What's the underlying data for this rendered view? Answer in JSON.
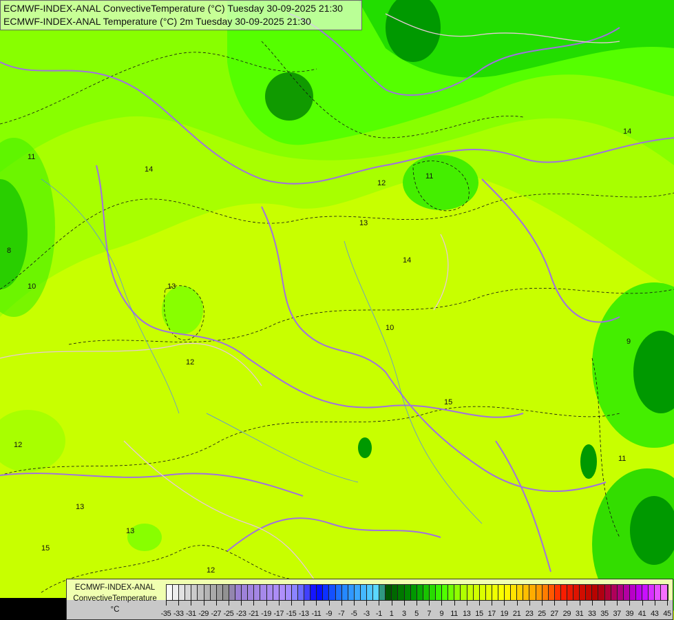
{
  "header": {
    "line1": "ECMWF-INDEX-ANAL ConvectiveTemperature (°C) Tuesday 30-09-2025 21:30",
    "line2": "ECMWF-INDEX-ANAL Temperature (°C) 2m Tuesday 30-09-2025 21:30"
  },
  "legend": {
    "model": "ECMWF-INDEX-ANAL",
    "parameter": "ConvectiveTemperature",
    "unit": "°C",
    "min": -35,
    "max": 45,
    "step": 1,
    "tick_labels": [
      "-35",
      "-33",
      "-31",
      "-29",
      "-27",
      "-25",
      "-23",
      "-21",
      "-19",
      "-17",
      "-15",
      "-13",
      "-11",
      "-9",
      "-7",
      "-5",
      "-3",
      "-1",
      "1",
      "3",
      "5",
      "7",
      "9",
      "11",
      "13",
      "15",
      "17",
      "19",
      "21",
      "23",
      "25",
      "27",
      "29",
      "31",
      "33",
      "35",
      "37",
      "39",
      "41",
      "43",
      "45"
    ],
    "color_stops": [
      {
        "v": -35,
        "c": "#ffffff"
      },
      {
        "v": -25,
        "c": "#8c8c8c"
      },
      {
        "v": -24,
        "c": "#9a7fd0"
      },
      {
        "v": -16,
        "c": "#b090ff"
      },
      {
        "v": -14,
        "c": "#8080ff"
      },
      {
        "v": -11,
        "c": "#0000ff"
      },
      {
        "v": -7,
        "c": "#2080ff"
      },
      {
        "v": -1,
        "c": "#60e0ff"
      },
      {
        "v": 0,
        "c": "#005000"
      },
      {
        "v": 5,
        "c": "#00a000"
      },
      {
        "v": 9,
        "c": "#40ff00"
      },
      {
        "v": 13,
        "c": "#c0ff00"
      },
      {
        "v": 19,
        "c": "#ffff00"
      },
      {
        "v": 25,
        "c": "#ff9000"
      },
      {
        "v": 28,
        "c": "#ff2000"
      },
      {
        "v": 34,
        "c": "#b00000"
      },
      {
        "v": 38,
        "c": "#b00090"
      },
      {
        "v": 41,
        "c": "#c000ff"
      },
      {
        "v": 45,
        "c": "#ff80ff"
      }
    ]
  },
  "map": {
    "colors": {
      "base": "#c8ff00",
      "light_green": "#a0ff00",
      "green": "#66ff00",
      "mid_green": "#22dd00",
      "dark_green": "#009900",
      "border": "#a070e0",
      "coast": "#e0c0d0"
    },
    "contour_labels": [
      {
        "t": "11"
      },
      {
        "t": "14"
      },
      {
        "t": "8"
      },
      {
        "t": "10"
      },
      {
        "t": "13"
      },
      {
        "t": "12"
      },
      {
        "t": "13"
      },
      {
        "t": "14"
      },
      {
        "t": "15"
      },
      {
        "t": "13"
      },
      {
        "t": "12"
      },
      {
        "t": "14"
      },
      {
        "t": "11"
      },
      {
        "t": "10"
      },
      {
        "t": "12"
      },
      {
        "t": "15"
      },
      {
        "t": "13"
      },
      {
        "t": "12"
      },
      {
        "t": "9"
      },
      {
        "t": "11"
      }
    ]
  }
}
